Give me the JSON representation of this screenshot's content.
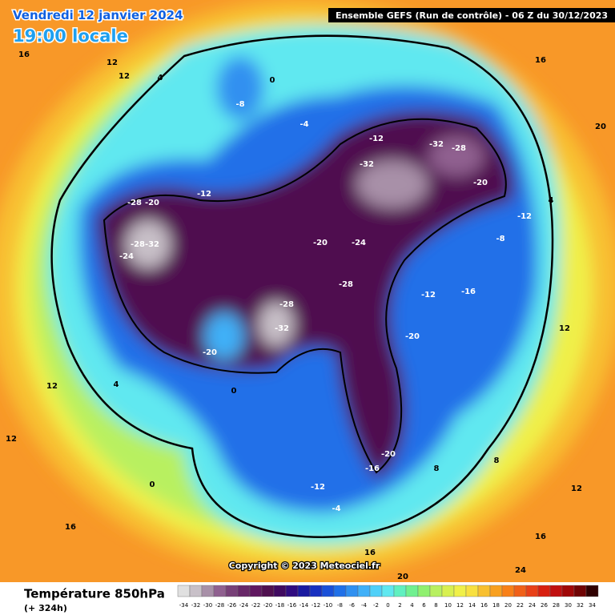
{
  "header": {
    "date": "Vendredi 12 janvier 2024",
    "time": "19:00 locale",
    "run": "Ensemble GEFS  (Run de contrôle)  -  06 Z du 30/12/2023"
  },
  "copyright": "Copyright © 2023 Meteociel.fr",
  "legend": {
    "title": "Température 850hPa",
    "subtitle": "(+ 324h)",
    "scale": [
      -34,
      -32,
      -30,
      -28,
      -26,
      -24,
      -22,
      -20,
      -18,
      -16,
      -14,
      -12,
      -10,
      -8,
      -6,
      -4,
      -2,
      0,
      2,
      4,
      6,
      8,
      10,
      12,
      14,
      16,
      18,
      20,
      22,
      24,
      26,
      28,
      30,
      32,
      34
    ],
    "colors": [
      "#e0e0e0",
      "#c8c0c8",
      "#a890a8",
      "#906090",
      "#784078",
      "#682868",
      "#601860",
      "#501050",
      "#400a60",
      "#300c80",
      "#1a1aa0",
      "#1830c0",
      "#1a50d8",
      "#2070e8",
      "#3090f0",
      "#40b0f8",
      "#50d0f8",
      "#60e8f0",
      "#60f0c0",
      "#70f090",
      "#90f070",
      "#b8f060",
      "#d8f050",
      "#f0f048",
      "#f8e040",
      "#f8c030",
      "#f8a020",
      "#f88018",
      "#f06018",
      "#e84018",
      "#d82010",
      "#c01010",
      "#a00808",
      "#700404",
      "#300000"
    ]
  },
  "map": {
    "labels": [
      16,
      12,
      12,
      4,
      0,
      -8,
      -4,
      -12,
      -32,
      -28,
      -32,
      -20,
      -28,
      -20,
      -12,
      -28,
      -32,
      -24,
      -20,
      -24,
      -28,
      -28,
      -32,
      -20,
      -20,
      -12,
      -16,
      -8,
      -12,
      0,
      4,
      12,
      12,
      0,
      16,
      -20,
      -16,
      -12,
      -4,
      8,
      8,
      12,
      16,
      20,
      16,
      4,
      12,
      16,
      20,
      24
    ]
  }
}
